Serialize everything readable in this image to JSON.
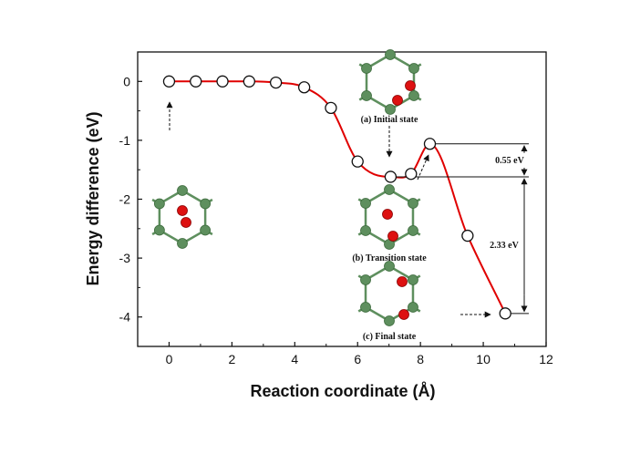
{
  "chart_data": {
    "type": "line",
    "xlabel": "Reaction coordinate (Å)",
    "ylabel": "Energy difference (eV)",
    "xlim": [
      -1,
      12
    ],
    "ylim": [
      -4.5,
      0.5
    ],
    "xticks": [
      0,
      2,
      4,
      6,
      8,
      10,
      12
    ],
    "yticks": [
      0,
      -1,
      -2,
      -3,
      -4
    ],
    "grid": false,
    "series": [
      {
        "color": "#e00000",
        "marker": "open-circle",
        "x": [
          0,
          0.85,
          1.7,
          2.55,
          3.4,
          4.3,
          5.15,
          6.0,
          7.05,
          7.7,
          8.3,
          9.5,
          10.7
        ],
        "y": [
          0.0,
          0.0,
          0.0,
          0.0,
          -0.02,
          -0.1,
          -0.45,
          -1.36,
          -1.62,
          -1.57,
          -1.06,
          -2.62,
          -3.94
        ]
      }
    ],
    "annotations": [
      {
        "id": "initial",
        "text": "(a) Initial state"
      },
      {
        "id": "transition",
        "text": "(b) Transition state"
      },
      {
        "id": "final",
        "text": "(c) Final state"
      },
      {
        "id": "barrier",
        "text": "0.55 eV"
      },
      {
        "id": "drop",
        "text": "2.33 eV"
      }
    ]
  },
  "colors": {
    "curve": "#e00000",
    "carbon": "#5e8f5e",
    "oxygen": "#dd1111",
    "bond": "#5e8f5e"
  }
}
